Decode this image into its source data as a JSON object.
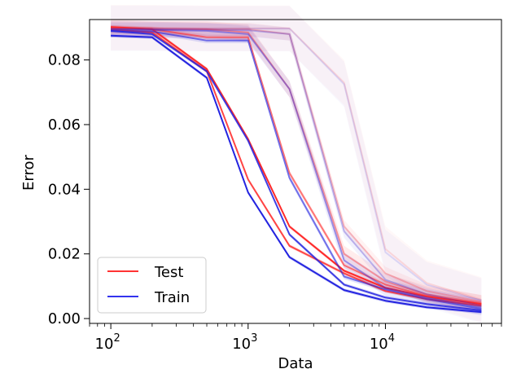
{
  "chart_data": {
    "type": "line",
    "title": "",
    "xlabel": "Data",
    "ylabel": "Error",
    "xscale": "log",
    "xlim": [
      70,
      70000
    ],
    "ylim": [
      -0.0015,
      0.0925
    ],
    "grid": false,
    "x": [
      100,
      200,
      500,
      1000,
      2000,
      5000,
      10000,
      20000,
      50000
    ],
    "x_ticks": [
      {
        "value": 100,
        "base": "10",
        "exp": "2"
      },
      {
        "value": 1000,
        "base": "10",
        "exp": "3"
      },
      {
        "value": 10000,
        "base": "10",
        "exp": "4"
      }
    ],
    "y_ticks": [
      {
        "value": 0.0,
        "label": "0.00"
      },
      {
        "value": 0.02,
        "label": "0.02"
      },
      {
        "value": 0.04,
        "label": "0.04"
      },
      {
        "value": 0.06,
        "label": "0.06"
      },
      {
        "value": 0.08,
        "label": "0.08"
      }
    ],
    "legend": {
      "position": "lower-left",
      "entries": [
        {
          "name": "Test",
          "color": "#ff3333"
        },
        {
          "name": "Train",
          "color": "#3333ee"
        }
      ]
    },
    "series": [
      {
        "group": "Test",
        "color": "#ff2a2a",
        "opacity": 1.0,
        "band": 0.0005,
        "values": [
          0.0902,
          0.0895,
          0.0772,
          0.0555,
          0.0285,
          0.0148,
          0.0095,
          0.0068,
          0.0045
        ]
      },
      {
        "group": "Train",
        "color": "#2424e0",
        "opacity": 1.0,
        "band": 0.0005,
        "values": [
          0.0875,
          0.087,
          0.0745,
          0.039,
          0.019,
          0.0088,
          0.0055,
          0.0035,
          0.002
        ]
      },
      {
        "group": "Test",
        "color": "#ff2a2a",
        "opacity": 0.85,
        "band": 0.0005,
        "values": [
          0.0895,
          0.0885,
          0.0765,
          0.043,
          0.0225,
          0.014,
          0.0085,
          0.006,
          0.004
        ]
      },
      {
        "group": "Train",
        "color": "#2424e0",
        "opacity": 0.85,
        "band": 0.0005,
        "values": [
          0.089,
          0.088,
          0.0765,
          0.055,
          0.026,
          0.0105,
          0.0065,
          0.0045,
          0.0025
        ]
      },
      {
        "group": "Test",
        "color": "#ff2a2a",
        "opacity": 0.6,
        "band": 0.0008,
        "values": [
          0.09,
          0.0895,
          0.087,
          0.087,
          0.045,
          0.0165,
          0.0105,
          0.007,
          0.0045
        ]
      },
      {
        "group": "Train",
        "color": "#2424e0",
        "opacity": 0.6,
        "band": 0.0008,
        "values": [
          0.089,
          0.0888,
          0.086,
          0.086,
          0.0435,
          0.013,
          0.009,
          0.006,
          0.003
        ]
      },
      {
        "group": "Test",
        "color": "#ff2a2a",
        "opacity": 0.42,
        "band": 0.0025,
        "values": [
          0.09,
          0.0895,
          0.0895,
          0.0885,
          0.071,
          0.02,
          0.0115,
          0.0075,
          0.0048
        ]
      },
      {
        "group": "Train",
        "color": "#2424e0",
        "opacity": 0.42,
        "band": 0.0025,
        "values": [
          0.0895,
          0.0893,
          0.089,
          0.088,
          0.071,
          0.018,
          0.0095,
          0.0065,
          0.0035
        ]
      },
      {
        "group": "Test",
        "color": "#ff2a2a",
        "opacity": 0.28,
        "band": 0.002,
        "values": [
          0.09,
          0.0898,
          0.0895,
          0.0895,
          0.088,
          0.0285,
          0.014,
          0.0085,
          0.0052
        ]
      },
      {
        "group": "Train",
        "color": "#2424e0",
        "opacity": 0.28,
        "band": 0.002,
        "values": [
          0.0895,
          0.0895,
          0.0893,
          0.0892,
          0.088,
          0.027,
          0.012,
          0.0075,
          0.004
        ]
      },
      {
        "group": "Test",
        "color": "#ff2a2a",
        "opacity": 0.14,
        "band": 0.007,
        "values": [
          0.09,
          0.09,
          0.0898,
          0.0898,
          0.0898,
          0.073,
          0.0215,
          0.011,
          0.0058
        ]
      },
      {
        "group": "Train",
        "color": "#2424e0",
        "opacity": 0.14,
        "band": 0.007,
        "values": [
          0.0898,
          0.0898,
          0.0897,
          0.0897,
          0.0897,
          0.0725,
          0.0205,
          0.0105,
          0.0055
        ]
      }
    ]
  }
}
